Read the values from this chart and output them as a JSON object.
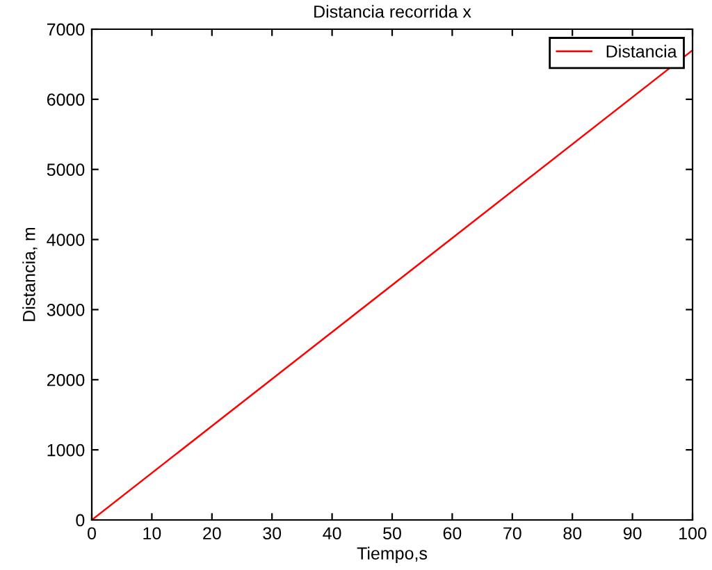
{
  "chart_data": {
    "type": "line",
    "title": "Distancia recorrida x",
    "xlabel": "Tiempo,s",
    "ylabel": "Distancia, m",
    "x": [
      0,
      100
    ],
    "series": [
      {
        "name": "Distancia",
        "color": "#ff0000",
        "values": [
          0,
          6700
        ]
      }
    ],
    "xlim": [
      0,
      100
    ],
    "xticks": [
      0,
      10,
      20,
      30,
      40,
      50,
      60,
      70,
      80,
      90,
      100
    ],
    "ylim": [
      0,
      7000
    ],
    "yticks": [
      0,
      1000,
      2000,
      3000,
      4000,
      5000,
      6000,
      7000
    ],
    "grid": false,
    "legend": "top right",
    "marker": "none",
    "line_style": "solid"
  }
}
